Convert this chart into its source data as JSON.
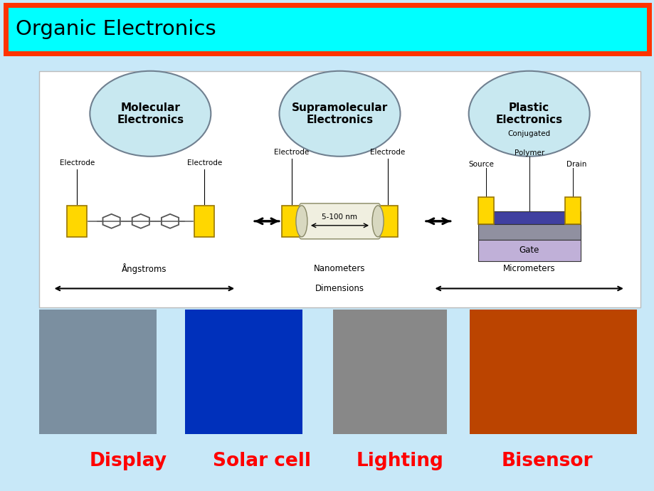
{
  "title": "Organic Electronics",
  "title_bg": "#00FFFF",
  "title_border": "#FF3300",
  "title_text_color": "#000000",
  "slide_bg": "#C8E8F8",
  "main_diagram_bg": "#FFFFFF",
  "ellipse_fill": "#C8E8F0",
  "ellipse_edge": "#708090",
  "ellipse_labels": [
    "Molecular\nElectronics",
    "Supramolecular\nElectronics",
    "Plastic\nElectronics"
  ],
  "bottom_labels": [
    "Display",
    "Solar cell",
    "Lighting",
    "Bisensor"
  ],
  "bottom_label_color": "#FF0000",
  "nm_label": "5-100 nm",
  "gate_label": "Gate",
  "img_colors": [
    "#8899AA",
    "#0020AA",
    "#909090",
    "#CC4400"
  ]
}
